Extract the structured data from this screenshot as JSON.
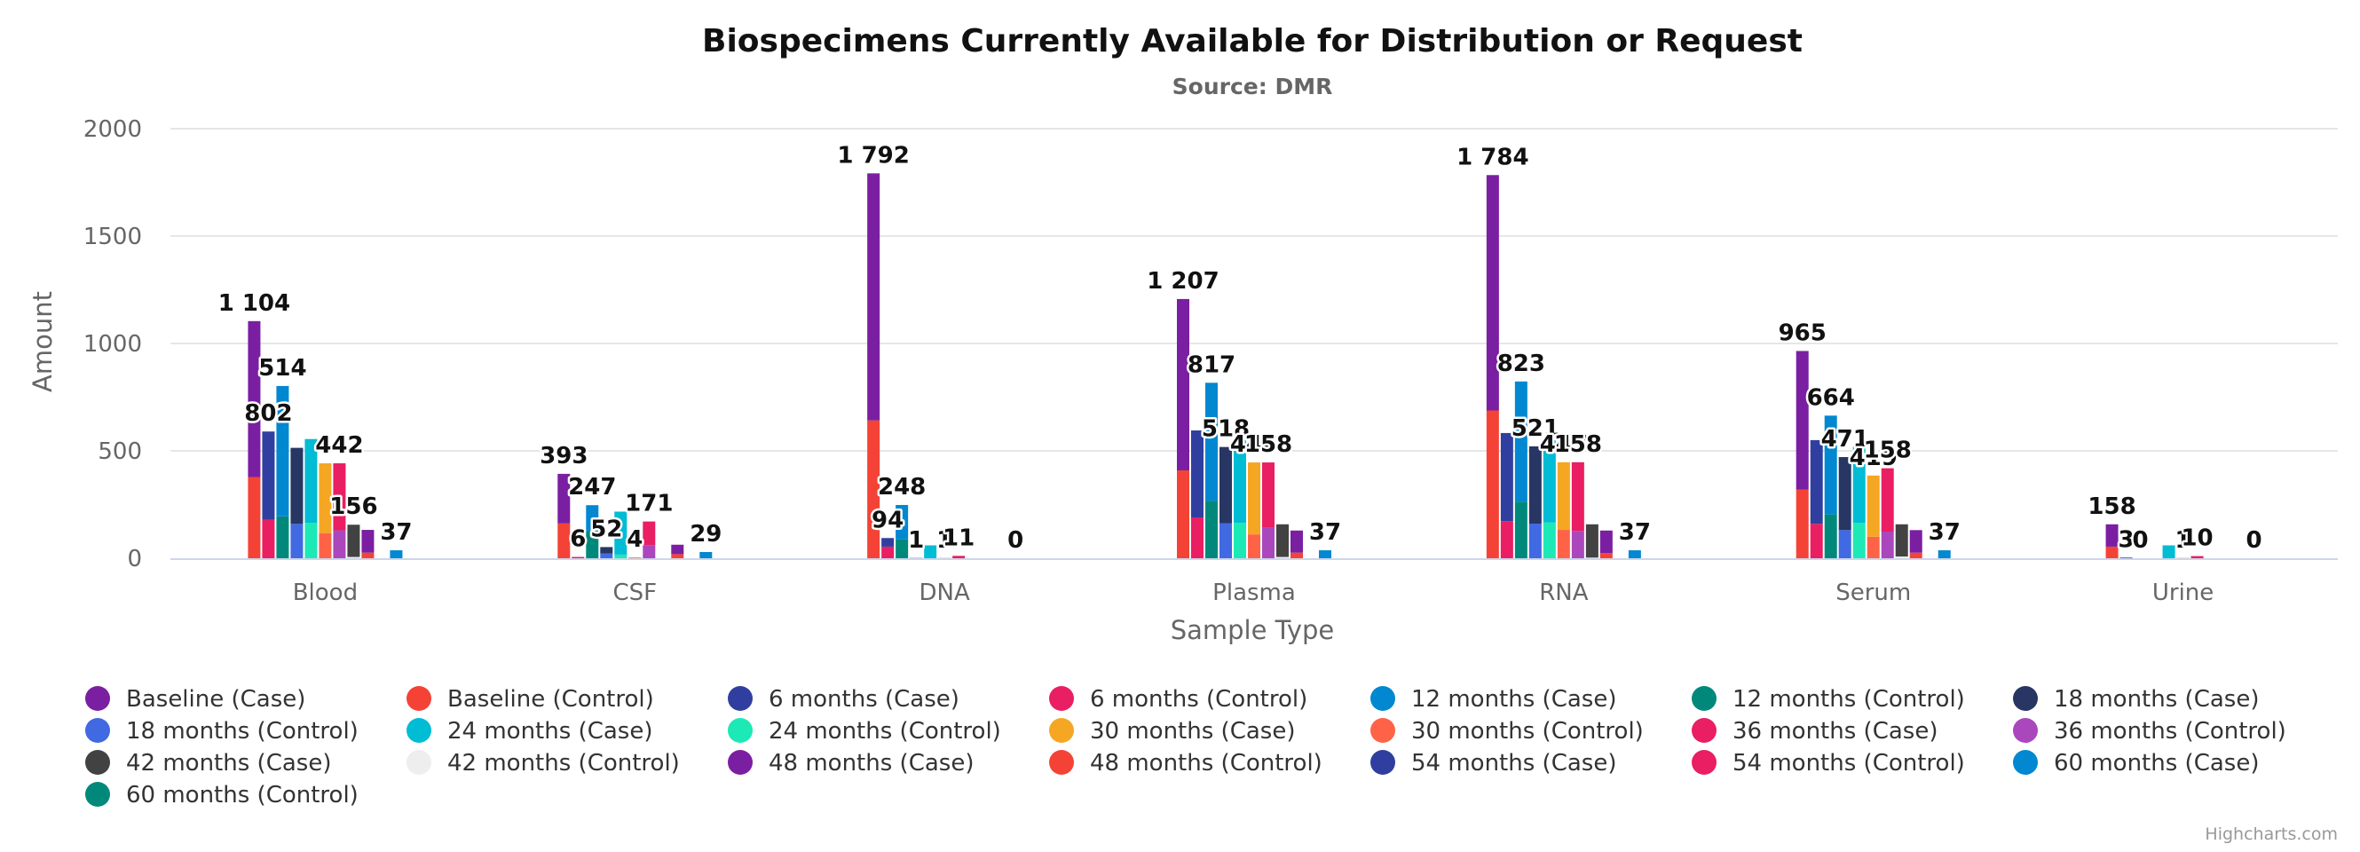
{
  "chart": {
    "title": "Biospecimens Currently Available for Distribution or Request",
    "subtitle": "Source: DMR",
    "credits": "Highcharts.com"
  },
  "chart_data": {
    "type": "bar",
    "stacking": "stacked columns (each stack = Case series with its Control series below)",
    "categories": [
      "Blood",
      "CSF",
      "DNA",
      "Plasma",
      "RNA",
      "Serum",
      "Urine"
    ],
    "xlabel": "Sample Type",
    "ylabel": "Amount",
    "ylim": [
      0,
      2000
    ],
    "yticks": [
      0,
      500,
      1000,
      1500,
      2000
    ],
    "grid": true,
    "legend_position": "bottom",
    "time_points": [
      {
        "case_name": "Baseline (Case)",
        "control_name": "Baseline (Control)",
        "case_color": "#7b1fa2",
        "control_color": "#f44336",
        "case": [
          726,
          231,
          1150,
          798,
          1096,
          645,
          104
        ],
        "control": [
          378,
          162,
          642,
          409,
          688,
          320,
          54
        ]
      },
      {
        "case_name": "6 months (Case)",
        "control_name": "6 months (Control)",
        "case_color": "#303f9f",
        "control_color": "#e91e63",
        "case": [
          410,
          0,
          40,
          405,
          410,
          390,
          3
        ],
        "control": [
          180,
          6,
          54,
          190,
          173,
          160,
          0
        ]
      },
      {
        "case_name": "12 months (Case)",
        "control_name": "12 months (Control)",
        "case_color": "#0288d1",
        "control_color": "#00897b",
        "case": [
          607,
          118,
          160,
          550,
          560,
          460,
          0
        ],
        "control": [
          195,
          129,
          88,
          267,
          263,
          204,
          0
        ]
      },
      {
        "case_name": "18 months (Case)",
        "control_name": "18 months (Control)",
        "case_color": "#283664",
        "control_color": "#4169e1",
        "case": [
          354,
          30,
          1,
          355,
          360,
          340,
          0
        ],
        "control": [
          160,
          22,
          0,
          163,
          161,
          131,
          0
        ]
      },
      {
        "case_name": "24 months (Case)",
        "control_name": "24 months (Control)",
        "case_color": "#00bcd4",
        "control_color": "#1de9b6",
        "case": [
          390,
          200,
          60,
          390,
          390,
          355,
          60
        ],
        "control": [
          165,
          17,
          0,
          165,
          167,
          165,
          0
        ]
      },
      {
        "case_name": "30 months (Case)",
        "control_name": "30 months (Control)",
        "case_color": "#f5a623",
        "control_color": "#ff6347",
        "case": [
          325,
          1,
          0,
          335,
          315,
          285,
          0
        ],
        "control": [
          117,
          3,
          1,
          111,
          132,
          100,
          1
        ]
      },
      {
        "case_name": "36 months (Case)",
        "control_name": "36 months (Control)",
        "case_color": "#e91e63",
        "control_color": "#ab47bc",
        "case": [
          312,
          110,
          11,
          303,
          320,
          295,
          10
        ],
        "control": [
          130,
          61,
          0,
          143,
          127,
          124,
          0
        ]
      },
      {
        "case_name": "42 months (Case)",
        "control_name": "42 months (Control)",
        "case_color": "#424242",
        "control_color": "#eeeeee",
        "case": [
          150,
          0,
          0,
          152,
          155,
          150,
          0
        ],
        "control": [
          6,
          0,
          0,
          6,
          3,
          8,
          0
        ]
      },
      {
        "case_name": "48 months (Case)",
        "control_name": "48 months (Control)",
        "case_color": "#7b1fa2",
        "control_color": "#f44336",
        "case": [
          106,
          44,
          0,
          103,
          105,
          105,
          0
        ],
        "control": [
          26,
          19,
          0,
          26,
          24,
          26,
          0
        ]
      },
      {
        "case_name": "54 months (Case)",
        "control_name": "54 months (Control)",
        "case_color": "#303f9f",
        "control_color": "#e91e63",
        "case": [
          0,
          0,
          0,
          0,
          0,
          0,
          0
        ],
        "control": [
          0,
          0,
          0,
          0,
          0,
          0,
          0
        ]
      },
      {
        "case_name": "60 months (Case)",
        "control_name": "60 months (Control)",
        "case_color": "#0288d1",
        "control_color": "#00897b",
        "case": [
          37,
          29,
          0,
          37,
          37,
          37,
          0
        ],
        "control": [
          0,
          0,
          0,
          0,
          0,
          0,
          0
        ]
      }
    ],
    "stack_labels": [
      {
        "category": "Blood",
        "stacks": [
          "1 104",
          "802",
          "514",
          "442",
          "156",
          "37"
        ]
      },
      {
        "category": "CSF",
        "stacks": [
          "393",
          "6",
          "247",
          "52",
          "4",
          "171",
          "29"
        ]
      },
      {
        "category": "DNA",
        "stacks": [
          "1 792",
          "94",
          "248",
          "1",
          "1",
          "11",
          "0"
        ]
      },
      {
        "category": "Plasma",
        "stacks": [
          "1 207",
          "817",
          "518",
          "446",
          "158",
          "37"
        ]
      },
      {
        "category": "RNA",
        "stacks": [
          "1 784",
          "823",
          "521",
          "447",
          "158",
          "37"
        ]
      },
      {
        "category": "Serum",
        "stacks": [
          "965",
          "664",
          "471",
          "419",
          "158",
          "37"
        ]
      },
      {
        "category": "Urine",
        "stacks": [
          "158",
          "3",
          "0",
          "1",
          "10",
          "0"
        ]
      }
    ]
  },
  "legend": {
    "items": [
      {
        "label": "Baseline (Case)",
        "color": "#7b1fa2"
      },
      {
        "label": "Baseline (Control)",
        "color": "#f44336"
      },
      {
        "label": "6 months (Case)",
        "color": "#303f9f"
      },
      {
        "label": "6 months (Control)",
        "color": "#e91e63"
      },
      {
        "label": "12 months (Case)",
        "color": "#0288d1"
      },
      {
        "label": "12 months (Control)",
        "color": "#00897b"
      },
      {
        "label": "18 months (Case)",
        "color": "#283664"
      },
      {
        "label": "18 months (Control)",
        "color": "#4169e1"
      },
      {
        "label": "24 months (Case)",
        "color": "#00bcd4"
      },
      {
        "label": "24 months (Control)",
        "color": "#1de9b6"
      },
      {
        "label": "30 months (Case)",
        "color": "#f5a623"
      },
      {
        "label": "30 months (Control)",
        "color": "#ff6347"
      },
      {
        "label": "36 months (Case)",
        "color": "#e91e63"
      },
      {
        "label": "36 months (Control)",
        "color": "#ab47bc"
      },
      {
        "label": "42 months (Case)",
        "color": "#424242"
      },
      {
        "label": "42 months (Control)",
        "color": "#eeeeee"
      },
      {
        "label": "48 months (Case)",
        "color": "#7b1fa2"
      },
      {
        "label": "48 months (Control)",
        "color": "#f44336"
      },
      {
        "label": "54 months (Case)",
        "color": "#303f9f"
      },
      {
        "label": "54 months (Control)",
        "color": "#e91e63"
      },
      {
        "label": "60 months (Case)",
        "color": "#0288d1"
      },
      {
        "label": "60 months (Control)",
        "color": "#00897b"
      }
    ]
  }
}
